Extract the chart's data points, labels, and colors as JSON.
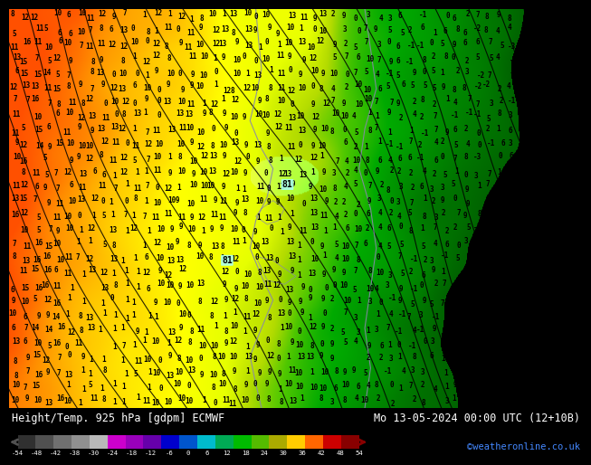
{
  "title_left": "Height/Temp. 925 hPa [gdpm] ECMWF",
  "title_right": "Mo 13-05-2024 00:00 UTC (12+10B)",
  "credit": "©weatheronline.co.uk",
  "colorbar_labels": [
    "-54",
    "-48",
    "-42",
    "-38",
    "-30",
    "-24",
    "-18",
    "-12",
    "-6",
    "0",
    "6",
    "12",
    "18",
    "24",
    "30",
    "36",
    "42",
    "48",
    "54"
  ],
  "colorbar_colors": [
    "#303030",
    "#505050",
    "#707070",
    "#909090",
    "#b8b8b8",
    "#cc00cc",
    "#9900bb",
    "#6600aa",
    "#0000cc",
    "#0055cc",
    "#00bbcc",
    "#00aa55",
    "#00bb00",
    "#55bb00",
    "#aaaa00",
    "#ffcc00",
    "#ff6600",
    "#cc0000",
    "#880000"
  ],
  "fig_bg": "#000000",
  "credit_color": "#4488ff",
  "bottom_bg": "#000000",
  "map_colors": {
    "deep_orange": "#ff8800",
    "orange": "#ffaa00",
    "yellow": "#ffff00",
    "yellow_green": "#aacc00",
    "light_green": "#88cc00",
    "green": "#00aa00",
    "dark_green": "#007700",
    "cyan_patch": "#aaffee"
  },
  "contour_line_color": "#000000",
  "number_color": "#000000",
  "number_fontsize": 5.5,
  "coastline_color": "#8888aa"
}
